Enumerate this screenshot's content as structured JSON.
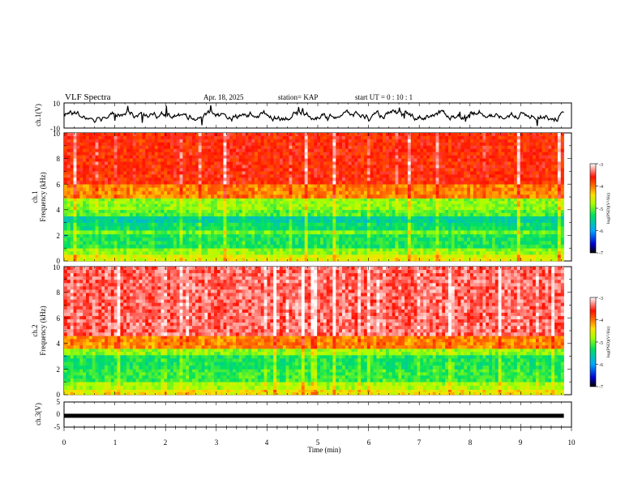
{
  "header": {
    "title": "VLF Spectra",
    "date": "Apr. 18, 2025",
    "station": "station= KAP",
    "start": "start  UT  =   0  : 10 : 1"
  },
  "colors": {
    "trace": "#000000",
    "colorbar": [
      "#000000",
      "#0000d0",
      "#00a8ff",
      "#00e060",
      "#a8ff00",
      "#ffe000",
      "#ff7000",
      "#ff1000",
      "#ffffff"
    ]
  },
  "chart_data": [
    {
      "type": "line",
      "name": "ch1-waveform",
      "ylabel": "ch.1(V)",
      "ylim": [
        -10,
        10
      ],
      "yticks": [
        "10",
        "-10"
      ],
      "xlim": [
        0,
        10
      ],
      "x_extent": 9.85
    },
    {
      "type": "heatmap",
      "name": "ch1-spectrogram",
      "ylabel_top": "ch.1",
      "ylabel": "Frequency  (kHz)",
      "ylim": [
        0,
        10
      ],
      "yticks": [
        "0",
        "2",
        "4",
        "6",
        "8",
        "10"
      ],
      "xlim": [
        0,
        10
      ],
      "x_extent": 9.85,
      "colorbar": {
        "label": "log(PSD)(V²/Hz)",
        "range": [
          -7,
          -3
        ],
        "ticks": [
          "-3",
          "-4",
          "-5",
          "-6",
          "-7"
        ]
      },
      "bands": [
        {
          "from": 0.0,
          "to": 0.5,
          "level": -4.6
        },
        {
          "from": 0.5,
          "to": 1.0,
          "level": -4.9
        },
        {
          "from": 1.0,
          "to": 2.1,
          "level": -5.3
        },
        {
          "from": 2.1,
          "to": 2.4,
          "level": -5.0
        },
        {
          "from": 2.4,
          "to": 3.0,
          "level": -5.4
        },
        {
          "from": 3.0,
          "to": 3.5,
          "level": -5.6
        },
        {
          "from": 3.5,
          "to": 4.0,
          "level": -5.1
        },
        {
          "from": 4.0,
          "to": 4.9,
          "level": -4.9
        },
        {
          "from": 4.9,
          "to": 6.0,
          "level": -4.1
        },
        {
          "from": 6.0,
          "to": 10.0,
          "level": -3.7
        }
      ]
    },
    {
      "type": "heatmap",
      "name": "ch2-spectrogram",
      "ylabel_top": "ch.2",
      "ylabel": "Frequency  (kHz)",
      "ylim": [
        0,
        10
      ],
      "yticks": [
        "0",
        "2",
        "4",
        "6",
        "8",
        "10"
      ],
      "xlim": [
        0,
        10
      ],
      "x_extent": 9.85,
      "colorbar": {
        "label": "log(PSD)(V²/Hz)",
        "range": [
          -7,
          -3
        ],
        "ticks": [
          "-3",
          "-4",
          "-5",
          "-6",
          "-7"
        ]
      },
      "bands": [
        {
          "from": 0.0,
          "to": 0.4,
          "level": -4.5
        },
        {
          "from": 0.4,
          "to": 1.0,
          "level": -4.8
        },
        {
          "from": 1.0,
          "to": 2.0,
          "level": -5.2
        },
        {
          "from": 2.0,
          "to": 3.1,
          "level": -5.3
        },
        {
          "from": 3.1,
          "to": 3.6,
          "level": -4.9
        },
        {
          "from": 3.6,
          "to": 4.6,
          "level": -4.1
        },
        {
          "from": 4.6,
          "to": 10.0,
          "level": -3.4
        }
      ]
    },
    {
      "type": "line",
      "name": "ch3-waveform",
      "ylabel": "ch.3(V)",
      "ylim": [
        -5,
        5
      ],
      "yticks": [
        "5",
        "0",
        "-5"
      ],
      "xlim": [
        0,
        10
      ],
      "x_extent": 9.85,
      "level": -0.5,
      "xlabel": "Time  (min)",
      "xticks": [
        "0",
        "1",
        "2",
        "3",
        "4",
        "5",
        "6",
        "7",
        "8",
        "9",
        "10"
      ]
    }
  ]
}
